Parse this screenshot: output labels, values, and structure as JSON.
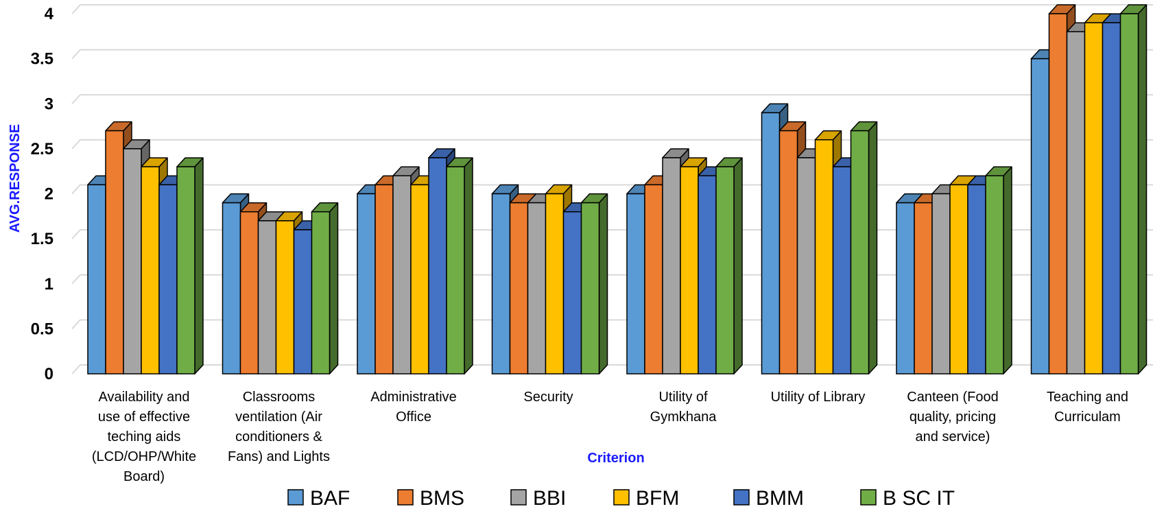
{
  "chart_data": {
    "type": "bar",
    "title": "",
    "xlabel": "Criterion",
    "ylabel": "AVG.RESPONSE",
    "ylim": [
      0,
      4
    ],
    "yticks": [
      "0",
      "0.5",
      "1",
      "1.5",
      "2",
      "2.5",
      "3",
      "3.5",
      "4"
    ],
    "grid": true,
    "legend_position": "bottom",
    "categories": [
      "Availability and use of effective teching aids (LCD/OHP/White Board)",
      "Classrooms ventilation (Air conditioners & Fans) and Lights",
      "Administrative Office",
      "Security",
      "Utility of Gymkhana",
      "Utility of Library",
      "Canteen (Food quality, pricing and service)",
      "Teaching and Curriculam"
    ],
    "category_lines": [
      [
        "Availability and",
        "use of effective",
        "teching aids",
        "(LCD/OHP/White",
        "Board)"
      ],
      [
        "Classrooms",
        "ventilation (Air",
        "conditioners &",
        "Fans) and Lights"
      ],
      [
        "Administrative",
        "Office"
      ],
      [
        "Security"
      ],
      [
        "Utility of",
        "Gymkhana"
      ],
      [
        "Utility of Library"
      ],
      [
        "Canteen (Food",
        "quality, pricing",
        "and service)"
      ],
      [
        "Teaching and",
        "Curriculam"
      ]
    ],
    "series": [
      {
        "name": "BAF",
        "color": "#5b9bd5",
        "values": [
          2.1,
          1.9,
          2.0,
          2.0,
          2.0,
          2.9,
          1.9,
          3.5
        ]
      },
      {
        "name": "BMS",
        "color": "#ed7d31",
        "values": [
          2.7,
          1.8,
          2.1,
          1.9,
          2.1,
          2.7,
          1.9,
          4.0
        ]
      },
      {
        "name": "BBI",
        "color": "#a5a5a5",
        "values": [
          2.5,
          1.7,
          2.2,
          1.9,
          2.4,
          2.4,
          2.0,
          3.8
        ]
      },
      {
        "name": "BFM",
        "color": "#ffc000",
        "values": [
          2.3,
          1.7,
          2.1,
          2.0,
          2.3,
          2.6,
          2.1,
          3.9
        ]
      },
      {
        "name": "BMM",
        "color": "#4472c4",
        "values": [
          2.1,
          1.6,
          2.4,
          1.8,
          2.2,
          2.3,
          2.1,
          3.9
        ]
      },
      {
        "name": "B SC IT",
        "color": "#70ad47",
        "values": [
          2.3,
          1.8,
          2.3,
          1.9,
          2.3,
          2.7,
          2.2,
          4.0
        ]
      }
    ]
  }
}
